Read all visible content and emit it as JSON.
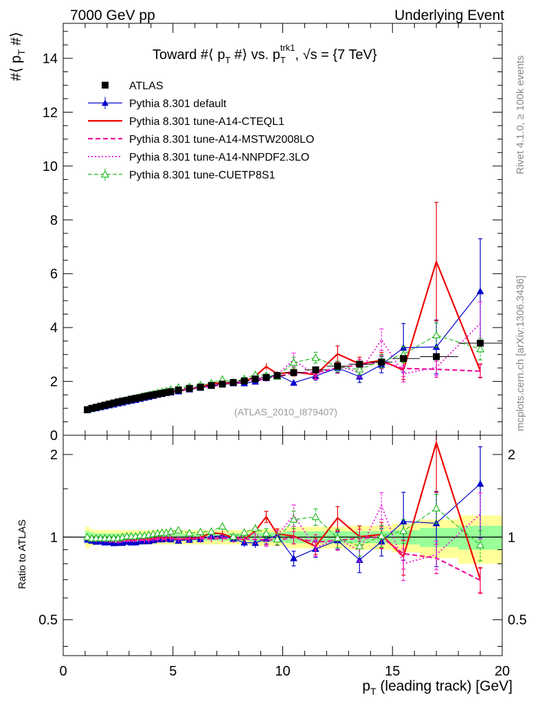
{
  "header": {
    "energy_label": "7000 GeV pp",
    "process_label": "Underlying Event",
    "side_rivet": "Rivet 4.1.0, ≥ 100k events",
    "side_mcplots": "mcplots.cern.ch [arXiv:1306.3436]",
    "analysis_tag": "(ATLAS_2010_I879407)"
  },
  "colors": {
    "data": "#000000",
    "default": "#0000cc",
    "cteql1": "#ee0000",
    "mstw": "#ee1199",
    "nnpdf": "#ee22dd",
    "cuetp8s1": "#22bb22",
    "band_inner": "#99ff99",
    "band_outer": "#ffff99"
  },
  "chart_data": [
    {
      "id": "main",
      "type": "line",
      "title": "Toward #⟨ p_T #⟩ vs. p_T^trk1, √s = {7 TeV}",
      "ylabel": "#⟨ p_T #⟩",
      "xlim": [
        0,
        20
      ],
      "ylim": [
        0,
        15.3
      ],
      "yticks": [
        0,
        2,
        4,
        6,
        8,
        10,
        12,
        14
      ],
      "x": [
        1.1,
        1.3,
        1.5,
        1.7,
        1.9,
        2.1,
        2.3,
        2.5,
        2.7,
        2.9,
        3.1,
        3.3,
        3.5,
        3.7,
        3.9,
        4.1,
        4.3,
        4.5,
        4.7,
        4.9,
        5.25,
        5.75,
        6.25,
        6.75,
        7.25,
        7.75,
        8.25,
        8.75,
        9.25,
        9.75,
        10.5,
        11.5,
        12.5,
        13.5,
        14.5,
        15.5,
        17,
        19
      ],
      "series": [
        {
          "key": "atlas",
          "name": "ATLAS",
          "style": "data",
          "values": [
            0.95,
            1.0,
            1.04,
            1.08,
            1.12,
            1.16,
            1.2,
            1.24,
            1.27,
            1.3,
            1.34,
            1.37,
            1.4,
            1.44,
            1.47,
            1.5,
            1.53,
            1.56,
            1.59,
            1.62,
            1.68,
            1.74,
            1.79,
            1.85,
            1.9,
            1.96,
            2.02,
            2.09,
            2.15,
            2.22,
            2.33,
            2.43,
            2.57,
            2.64,
            2.72,
            2.85,
            2.92,
            3.42
          ]
        },
        {
          "key": "default",
          "name": "Pythia 8.301 default",
          "style": "line-solid-triangle",
          "values": [
            0.93,
            0.97,
            1.0,
            1.04,
            1.07,
            1.11,
            1.14,
            1.18,
            1.21,
            1.25,
            1.28,
            1.31,
            1.35,
            1.39,
            1.42,
            1.46,
            1.5,
            1.53,
            1.57,
            1.59,
            1.63,
            1.7,
            1.76,
            1.86,
            1.92,
            1.93,
            1.93,
            1.99,
            2.12,
            2.25,
            1.95,
            2.2,
            2.5,
            2.18,
            2.62,
            3.25,
            3.28,
            5.35
          ],
          "err": [
            0.02,
            0.02,
            0.02,
            0.02,
            0.02,
            0.02,
            0.02,
            0.02,
            0.02,
            0.02,
            0.02,
            0.02,
            0.03,
            0.03,
            0.03,
            0.03,
            0.03,
            0.03,
            0.03,
            0.04,
            0.04,
            0.04,
            0.05,
            0.05,
            0.06,
            0.06,
            0.07,
            0.08,
            0.09,
            0.1,
            0.12,
            0.15,
            0.18,
            0.22,
            0.3,
            0.9,
            1.0,
            1.95
          ]
        },
        {
          "key": "cteql1",
          "name": "Pythia 8.301 tune-A14-CTEQL1",
          "style": "line-solid",
          "values": [
            0.95,
            0.99,
            1.02,
            1.06,
            1.09,
            1.13,
            1.17,
            1.2,
            1.24,
            1.27,
            1.31,
            1.34,
            1.38,
            1.41,
            1.45,
            1.48,
            1.52,
            1.55,
            1.58,
            1.61,
            1.65,
            1.72,
            1.78,
            1.92,
            1.95,
            1.95,
            1.98,
            2.2,
            2.55,
            2.28,
            2.35,
            2.25,
            3.02,
            2.65,
            2.78,
            2.42,
            6.45,
            2.4
          ],
          "err": [
            0.02,
            0.02,
            0.02,
            0.02,
            0.02,
            0.02,
            0.02,
            0.02,
            0.02,
            0.02,
            0.02,
            0.02,
            0.03,
            0.03,
            0.03,
            0.03,
            0.03,
            0.03,
            0.03,
            0.04,
            0.04,
            0.04,
            0.05,
            0.05,
            0.06,
            0.06,
            0.07,
            0.08,
            0.12,
            0.1,
            0.15,
            0.15,
            0.3,
            0.25,
            0.3,
            0.35,
            2.2,
            0.25
          ]
        },
        {
          "key": "mstw",
          "name": "Pythia 8.301 tune-A14-MSTW2008LO",
          "style": "line-dashed",
          "values": [
            0.94,
            0.98,
            1.01,
            1.05,
            1.09,
            1.12,
            1.16,
            1.19,
            1.23,
            1.26,
            1.3,
            1.33,
            1.37,
            1.4,
            1.43,
            1.47,
            1.5,
            1.53,
            1.56,
            1.6,
            1.65,
            1.71,
            1.77,
            1.82,
            1.88,
            1.93,
            1.99,
            2.05,
            2.1,
            2.17,
            2.32,
            2.33,
            2.5,
            2.62,
            2.72,
            2.48,
            2.45,
            2.38
          ],
          "err": [
            0.02,
            0.02,
            0.02,
            0.02,
            0.02,
            0.02,
            0.02,
            0.02,
            0.02,
            0.02,
            0.02,
            0.02,
            0.03,
            0.03,
            0.03,
            0.03,
            0.03,
            0.03,
            0.03,
            0.04,
            0.04,
            0.04,
            0.05,
            0.05,
            0.06,
            0.06,
            0.07,
            0.08,
            0.09,
            0.1,
            0.12,
            0.15,
            0.2,
            0.2,
            0.25,
            0.3,
            0.3,
            0.25
          ]
        },
        {
          "key": "nnpdf",
          "name": "Pythia 8.301 tune-A14-NNPDF2.3LO",
          "style": "line-dotted",
          "values": [
            0.95,
            0.99,
            1.02,
            1.06,
            1.09,
            1.13,
            1.17,
            1.2,
            1.24,
            1.27,
            1.31,
            1.34,
            1.38,
            1.41,
            1.45,
            1.48,
            1.52,
            1.55,
            1.58,
            1.61,
            1.66,
            1.73,
            1.78,
            1.85,
            1.9,
            1.94,
            2.05,
            2.15,
            2.08,
            2.25,
            2.8,
            2.22,
            2.55,
            2.35,
            3.55,
            2.28,
            2.52,
            4.15
          ],
          "err": [
            0.02,
            0.02,
            0.02,
            0.02,
            0.02,
            0.02,
            0.02,
            0.02,
            0.02,
            0.02,
            0.02,
            0.02,
            0.03,
            0.03,
            0.03,
            0.03,
            0.03,
            0.03,
            0.03,
            0.04,
            0.04,
            0.04,
            0.05,
            0.05,
            0.06,
            0.06,
            0.07,
            0.08,
            0.09,
            0.1,
            0.25,
            0.15,
            0.2,
            0.2,
            0.4,
            0.3,
            0.3,
            0.8
          ]
        },
        {
          "key": "cuetp8s1",
          "name": "Pythia 8.301 tune-CUETP8S1",
          "style": "line-dashed-opentriangle",
          "values": [
            0.95,
            0.99,
            1.03,
            1.07,
            1.11,
            1.15,
            1.19,
            1.23,
            1.27,
            1.31,
            1.35,
            1.38,
            1.42,
            1.46,
            1.5,
            1.54,
            1.58,
            1.62,
            1.65,
            1.7,
            1.78,
            1.8,
            1.87,
            1.94,
            2.08,
            1.97,
            2.1,
            2.25,
            2.22,
            2.18,
            2.7,
            2.88,
            2.55,
            2.45,
            2.75,
            3.0,
            3.72,
            3.2
          ],
          "err": [
            0.02,
            0.02,
            0.02,
            0.02,
            0.02,
            0.02,
            0.02,
            0.02,
            0.02,
            0.02,
            0.02,
            0.02,
            0.03,
            0.03,
            0.03,
            0.03,
            0.03,
            0.03,
            0.03,
            0.04,
            0.04,
            0.04,
            0.05,
            0.05,
            0.06,
            0.06,
            0.07,
            0.08,
            0.09,
            0.1,
            0.2,
            0.2,
            0.2,
            0.2,
            0.25,
            0.3,
            0.45,
            0.4
          ]
        }
      ]
    },
    {
      "id": "ratio",
      "type": "line",
      "ylabel": "Ratio to ATLAS",
      "xlabel": "p_T (leading track) [GeV]",
      "xlim": [
        0,
        20
      ],
      "ylim": [
        0.37,
        2.35
      ],
      "yticks": [
        0.5,
        1,
        2
      ],
      "xticks": [
        0,
        5,
        10,
        15,
        20
      ],
      "band_inner": [
        0.05,
        0.04,
        0.03,
        0.03,
        0.03,
        0.03,
        0.03,
        0.03,
        0.03,
        0.03,
        0.03,
        0.03,
        0.03,
        0.03,
        0.03,
        0.03,
        0.03,
        0.03,
        0.03,
        0.03,
        0.03,
        0.03,
        0.03,
        0.03,
        0.03,
        0.03,
        0.03,
        0.04,
        0.04,
        0.04,
        0.05,
        0.05,
        0.05,
        0.05,
        0.05,
        0.06,
        0.08,
        0.1
      ],
      "band_outer": [
        0.09,
        0.07,
        0.06,
        0.06,
        0.06,
        0.06,
        0.06,
        0.06,
        0.06,
        0.06,
        0.06,
        0.06,
        0.06,
        0.06,
        0.06,
        0.06,
        0.06,
        0.06,
        0.06,
        0.06,
        0.06,
        0.06,
        0.06,
        0.06,
        0.06,
        0.06,
        0.06,
        0.07,
        0.07,
        0.07,
        0.09,
        0.09,
        0.09,
        0.1,
        0.1,
        0.12,
        0.16,
        0.2
      ]
    }
  ]
}
